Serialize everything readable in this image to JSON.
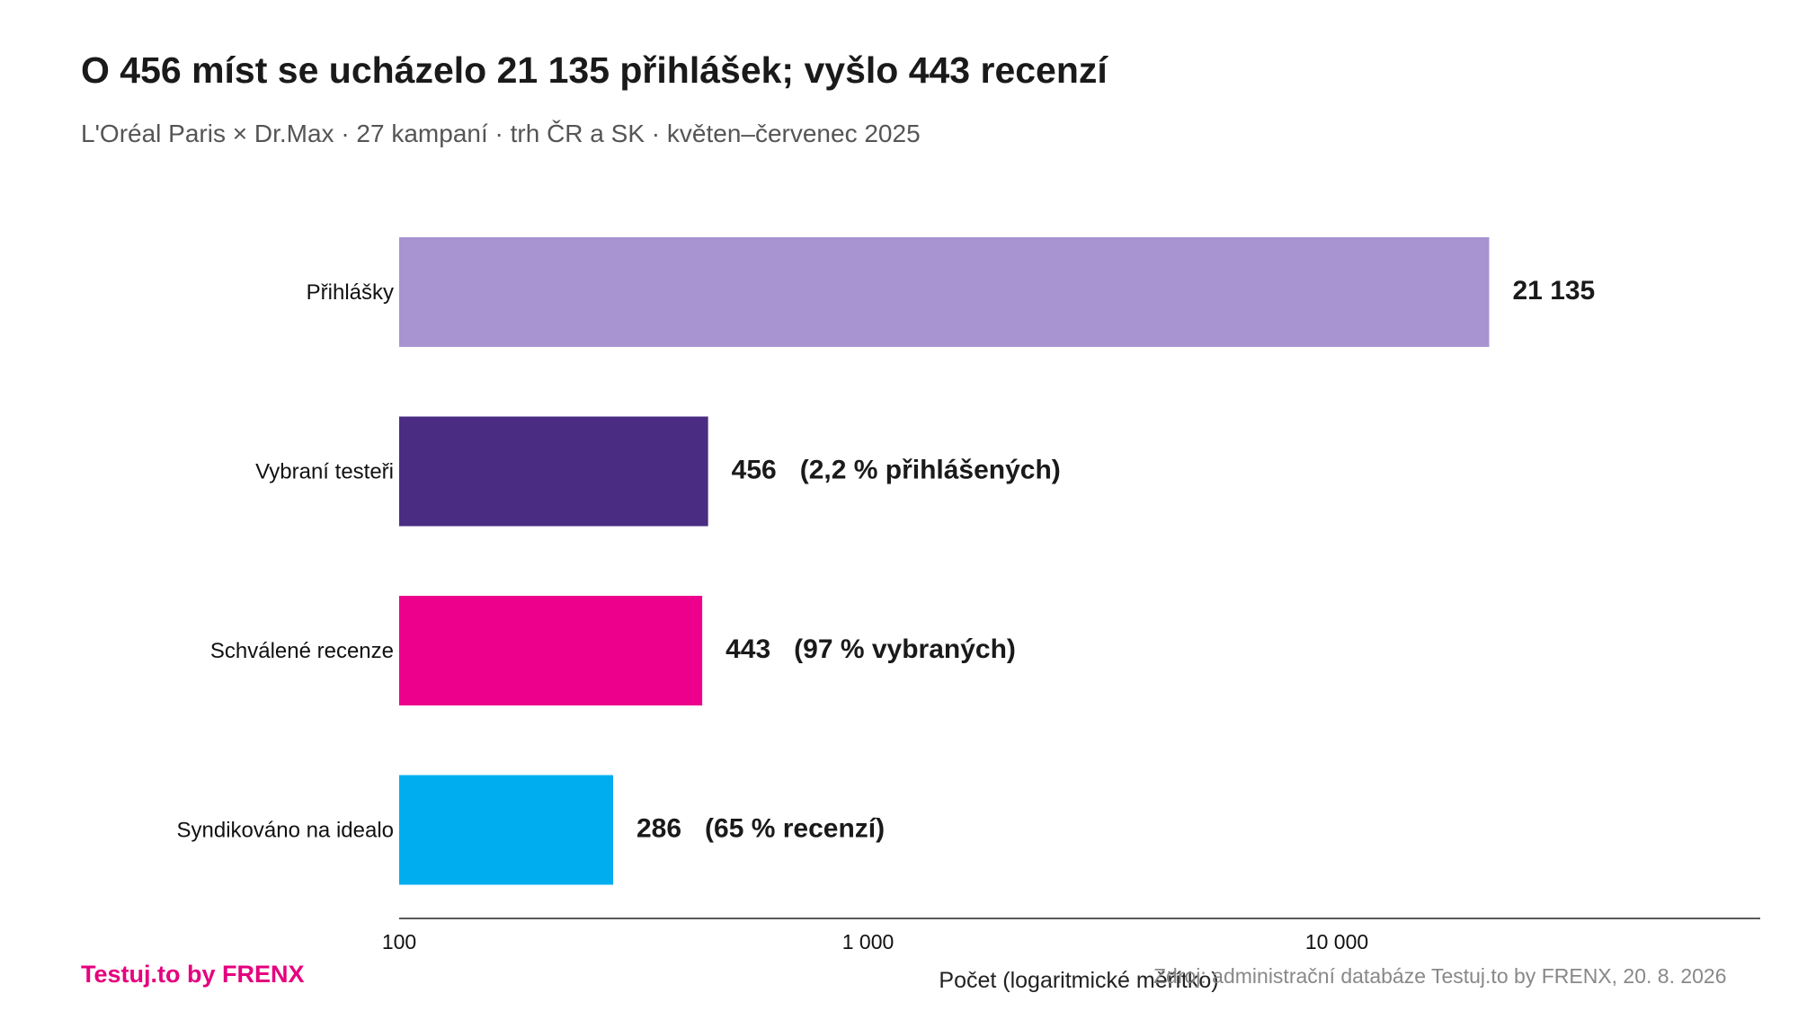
{
  "title": "O 456 míst se ucházelo 21 135 přihlášek; vyšlo 443 recenzí",
  "subtitle": "L'Oréal Paris × Dr.Max · 27 kampaní · trh ČR a SK · květen–červenec 2025",
  "footer": {
    "brand": "Testuj.to by FRENX",
    "source": "Zdroj: administrační databáze Testuj.to by FRENX, 20. 8. 2026"
  },
  "chart_data": {
    "type": "bar",
    "orientation": "horizontal",
    "xscale": "log",
    "xlim": [
      100,
      70000
    ],
    "xlabel": "Počet (logaritmické měřítko)",
    "ticks": [
      {
        "value": 100,
        "label": "100"
      },
      {
        "value": 1000,
        "label": "1 000"
      },
      {
        "value": 10000,
        "label": "10 000"
      }
    ],
    "bars": [
      {
        "category": "Přihlášky",
        "value": 21135,
        "value_label": "21 135",
        "note": "",
        "color": "#a794d1"
      },
      {
        "category": "Vybraní testeři",
        "value": 456,
        "value_label": "456",
        "note": "(2,2 % přihlášených)",
        "color": "#4a2d82"
      },
      {
        "category": "Schválené recenze",
        "value": 443,
        "value_label": "443",
        "note": "(97 % vybraných)",
        "color": "#ec008c"
      },
      {
        "category": "Syndikováno na idealo",
        "value": 286,
        "value_label": "286",
        "note": "(65 % recenzí)",
        "color": "#00aeef"
      }
    ],
    "grid": false,
    "legend": "none"
  }
}
